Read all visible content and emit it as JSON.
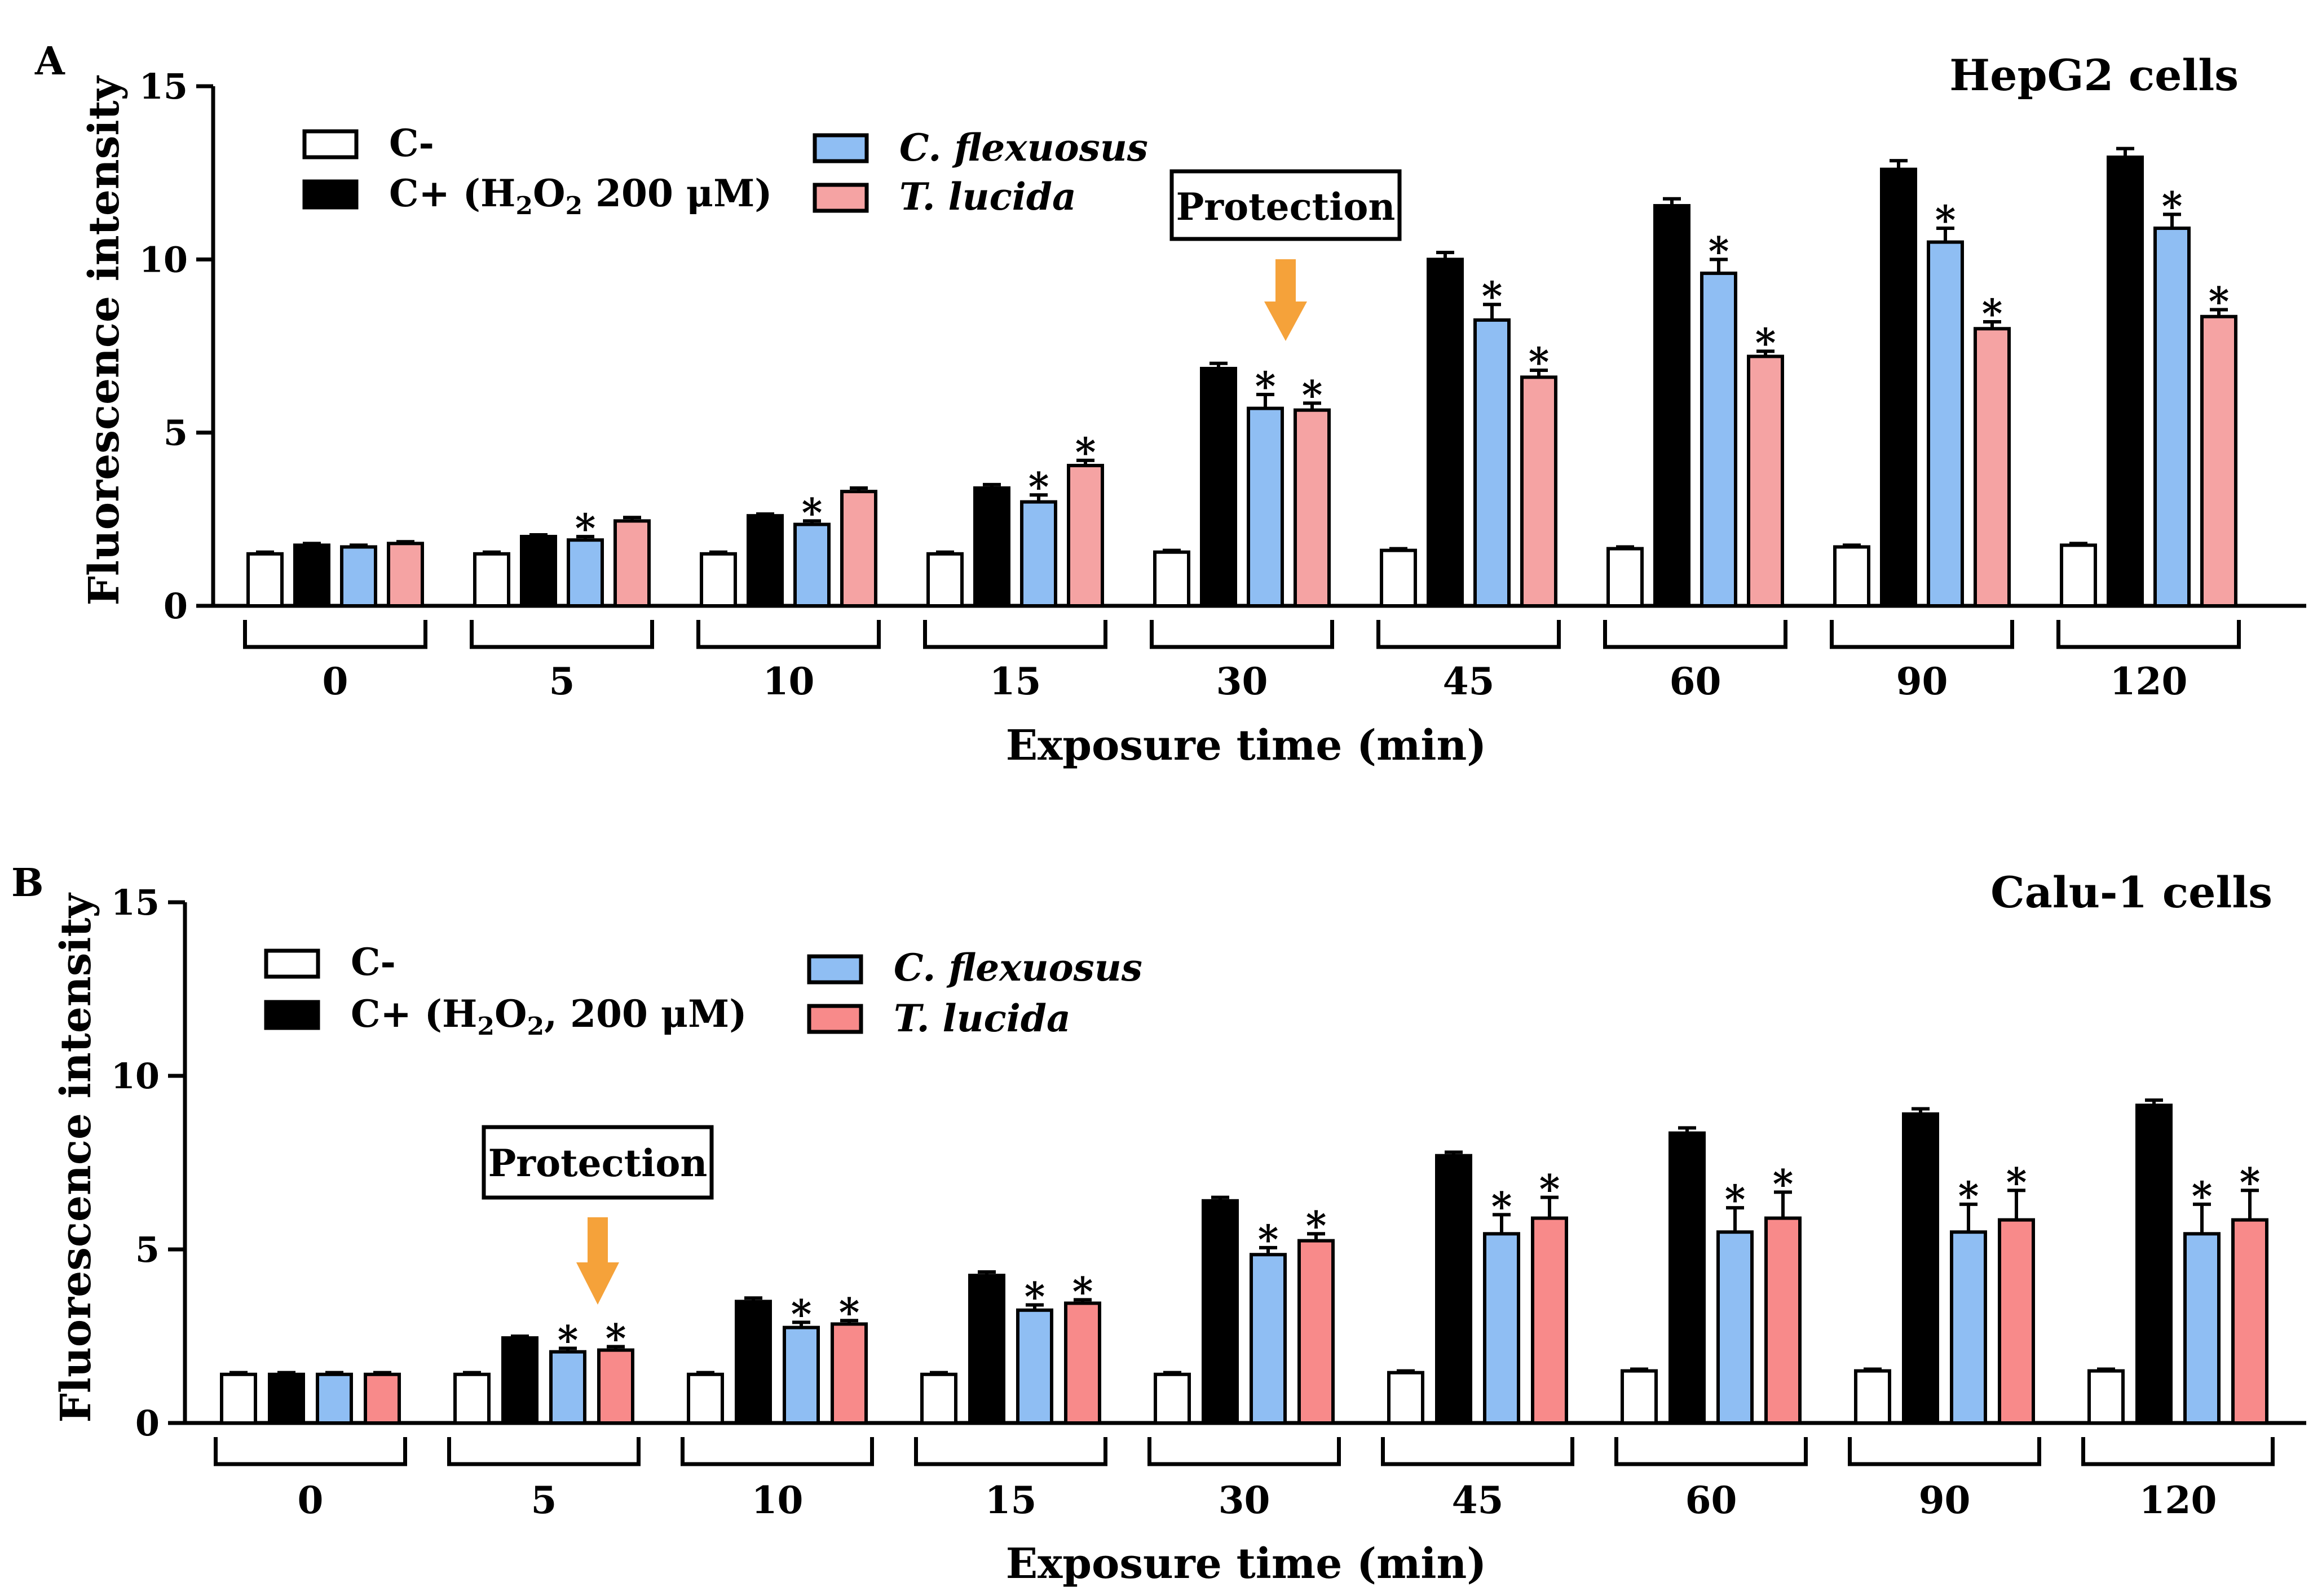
{
  "colors": {
    "c_minus": "#ffffff",
    "c_plus": "#000000",
    "cflex": "#8fbef3",
    "tlucida_a": "#f5a3a3",
    "tlucida_b": "#f88a8a",
    "arrow": "#f5a23a"
  },
  "chart_data": [
    {
      "type": "bar",
      "panel": "A",
      "title": "HepG2 cells",
      "ylabel": "Fluorescence intensity",
      "xlabel": "Exposure time (min)",
      "ylim": [
        0,
        15
      ],
      "yticks": [
        "0",
        "5",
        "10",
        "15"
      ],
      "categories": [
        "0",
        "5",
        "10",
        "15",
        "30",
        "45",
        "60",
        "90",
        "120"
      ],
      "series": [
        {
          "name": "C-",
          "color_key": "c_minus",
          "values": [
            1.5,
            1.5,
            1.5,
            1.5,
            1.55,
            1.6,
            1.65,
            1.7,
            1.75
          ],
          "errors": [
            0.05,
            0.05,
            0.05,
            0.05,
            0.05,
            0.05,
            0.05,
            0.05,
            0.05
          ],
          "sig": [
            false,
            false,
            false,
            false,
            false,
            false,
            false,
            false,
            false
          ]
        },
        {
          "name": "C+ (H2O2 200 μM)",
          "color_key": "c_plus",
          "values": [
            1.75,
            2.0,
            2.6,
            3.4,
            6.85,
            10.0,
            11.55,
            12.6,
            12.95
          ],
          "errors": [
            0.05,
            0.05,
            0.05,
            0.1,
            0.15,
            0.2,
            0.2,
            0.25,
            0.25
          ],
          "sig": [
            false,
            false,
            false,
            false,
            false,
            false,
            false,
            false,
            false
          ]
        },
        {
          "name": "C. flexuosus",
          "color_key": "cflex",
          "values": [
            1.7,
            1.9,
            2.35,
            3.0,
            5.7,
            8.25,
            9.6,
            10.5,
            10.9
          ],
          "errors": [
            0.05,
            0.1,
            0.1,
            0.2,
            0.4,
            0.45,
            0.4,
            0.4,
            0.4
          ],
          "sig": [
            false,
            true,
            true,
            true,
            true,
            true,
            true,
            true,
            true
          ]
        },
        {
          "name": "T. lucida",
          "color_key": "tlucida_a",
          "values": [
            1.8,
            2.45,
            3.3,
            4.05,
            5.65,
            6.6,
            7.2,
            8.0,
            8.35
          ],
          "errors": [
            0.05,
            0.1,
            0.1,
            0.15,
            0.2,
            0.2,
            0.15,
            0.2,
            0.2
          ],
          "sig": [
            false,
            false,
            false,
            true,
            true,
            true,
            true,
            true,
            true
          ]
        }
      ],
      "legend": {
        "c_minus": "C-",
        "c_plus_prefix": "C+ (H",
        "c_plus_sub1": "2",
        "c_plus_mid": "O",
        "c_plus_sub2": "2",
        "c_plus_suffix": " 200 μM)",
        "cflex": "C. flexuosus",
        "tlucida": "T. lucida"
      },
      "annotation": {
        "label": "Protection",
        "category": "30"
      },
      "sig_marker": "*"
    },
    {
      "type": "bar",
      "panel": "B",
      "title": "Calu-1 cells",
      "ylabel": "Fluorescence intensity",
      "xlabel": "Exposure time (min)",
      "ylim": [
        0,
        15
      ],
      "yticks": [
        "0",
        "5",
        "10",
        "15"
      ],
      "categories": [
        "0",
        "5",
        "10",
        "15",
        "30",
        "45",
        "60",
        "90",
        "120"
      ],
      "series": [
        {
          "name": "C-",
          "color_key": "c_minus",
          "values": [
            1.4,
            1.4,
            1.4,
            1.4,
            1.4,
            1.45,
            1.5,
            1.5,
            1.5
          ],
          "errors": [
            0.05,
            0.05,
            0.05,
            0.05,
            0.05,
            0.05,
            0.05,
            0.05,
            0.05
          ],
          "sig": [
            false,
            false,
            false,
            false,
            false,
            false,
            false,
            false,
            false
          ]
        },
        {
          "name": "C+ (H2O2, 200 μM)",
          "color_key": "c_plus",
          "values": [
            1.4,
            2.45,
            3.5,
            4.25,
            6.4,
            7.7,
            8.35,
            8.9,
            9.15
          ],
          "errors": [
            0.05,
            0.05,
            0.1,
            0.1,
            0.1,
            0.1,
            0.15,
            0.15,
            0.15
          ],
          "sig": [
            false,
            false,
            false,
            false,
            false,
            false,
            false,
            false,
            false
          ]
        },
        {
          "name": "C. flexuosus",
          "color_key": "cflex",
          "values": [
            1.4,
            2.05,
            2.75,
            3.25,
            4.85,
            5.45,
            5.5,
            5.5,
            5.45
          ],
          "errors": [
            0.05,
            0.1,
            0.15,
            0.15,
            0.2,
            0.55,
            0.7,
            0.8,
            0.85
          ],
          "sig": [
            false,
            true,
            true,
            true,
            true,
            true,
            true,
            true,
            true
          ]
        },
        {
          "name": "T. lucida",
          "color_key": "tlucida_b",
          "values": [
            1.4,
            2.1,
            2.85,
            3.45,
            5.25,
            5.9,
            5.9,
            5.85,
            5.85
          ],
          "errors": [
            0.05,
            0.1,
            0.1,
            0.1,
            0.2,
            0.6,
            0.75,
            0.85,
            0.85
          ],
          "sig": [
            false,
            true,
            true,
            true,
            true,
            true,
            true,
            true,
            true
          ]
        }
      ],
      "legend": {
        "c_minus": "C-",
        "c_plus_prefix": "C+ (H",
        "c_plus_sub1": "2",
        "c_plus_mid": "O",
        "c_plus_sub2": "2",
        "c_plus_suffix": ", 200 μM)",
        "cflex": "C. flexuosus",
        "tlucida": "T. lucida"
      },
      "annotation": {
        "label": "Protection",
        "category": "5"
      },
      "sig_marker": "*"
    }
  ]
}
